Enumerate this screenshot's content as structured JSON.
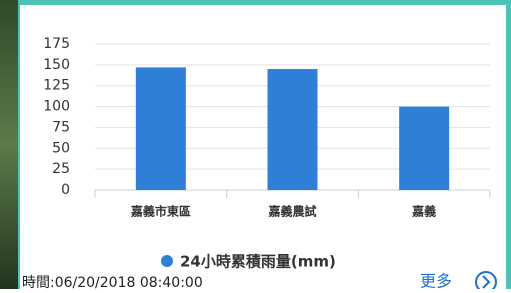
{
  "chart_data": {
    "type": "bar",
    "categories": [
      "嘉義市東區",
      "嘉義農試",
      "嘉義"
    ],
    "series": [
      {
        "name": "24小時累積雨量(mm)",
        "color": "#2f7ed8",
        "values": [
          147,
          145,
          100
        ]
      }
    ],
    "ylim": [
      0,
      175
    ],
    "yticks": [
      0,
      25,
      50,
      75,
      100,
      125,
      150,
      175
    ],
    "grid": true
  },
  "footer": {
    "time": "時間:06/20/2018 08:40:00",
    "more": "更多"
  }
}
